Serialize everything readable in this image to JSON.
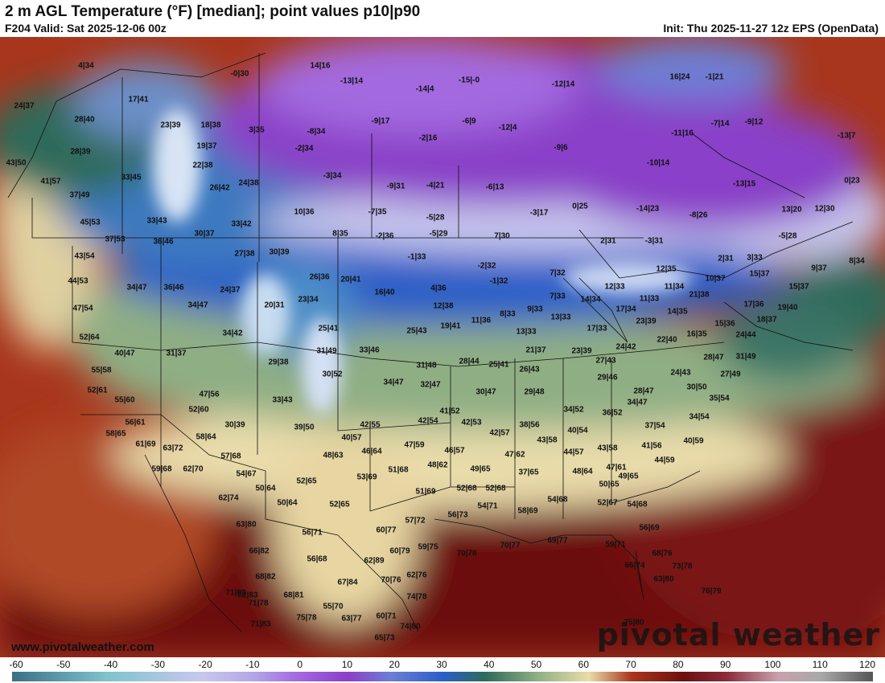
{
  "header": {
    "title": "2 m AGL Temperature (°F) [median]; point values p10|p90",
    "valid": "F204 Valid: Sat 2025-12-06 00z",
    "init": "Init: Thu 2025-11-27 12z EPS (OpenData)"
  },
  "footer": {
    "website": "www.pivotalweather.com",
    "brand": "pivotal weather"
  },
  "colorbar": {
    "ticks": [
      "-60",
      "-50",
      "-40",
      "-30",
      "-20",
      "-10",
      "0",
      "10",
      "20",
      "30",
      "40",
      "50",
      "60",
      "70",
      "80",
      "90",
      "100",
      "110",
      "120"
    ],
    "colors": {
      "m60": "#3a6f86",
      "m40": "#7fc3cc",
      "m20": "#c8c8ee",
      "m10": "#b3a6e6",
      "0": "#a36be0",
      "10": "#8a3fc8",
      "20": "#6d7fd4",
      "30": "#2a5ec7",
      "35": "#4f8fc8",
      "40": "#2f6a5a",
      "50": "#8fae84",
      "60": "#e9dcaa",
      "70": "#a8361c",
      "80": "#6c0f10",
      "90": "#8b2b3b",
      "100": "#c8a0ac",
      "110": "#a8a8a8",
      "120": "#555555"
    }
  },
  "points": [
    {
      "t": "4|34"
    },
    {
      "t": "-0|30"
    },
    {
      "t": "14|16"
    },
    {
      "t": "-13|14"
    },
    {
      "t": "-15|-0"
    },
    {
      "t": "-12|14"
    },
    {
      "t": "16|24"
    },
    {
      "t": "-1|21"
    },
    {
      "t": "24|37"
    },
    {
      "t": "17|41"
    },
    {
      "t": "-14|4"
    },
    {
      "t": "28|40"
    },
    {
      "t": "23|39"
    },
    {
      "t": "18|38"
    },
    {
      "t": "3|35"
    },
    {
      "t": "-8|34"
    },
    {
      "t": "-9|17"
    },
    {
      "t": "-6|9"
    },
    {
      "t": "-12|4"
    },
    {
      "t": "-11|16"
    },
    {
      "t": "-7|14"
    },
    {
      "t": "-9|12"
    },
    {
      "t": "-13|7"
    },
    {
      "t": "-2|16"
    },
    {
      "t": "28|39"
    },
    {
      "t": "19|37"
    },
    {
      "t": "-2|34"
    },
    {
      "t": "-9|6"
    },
    {
      "t": "43|50"
    },
    {
      "t": "22|38"
    },
    {
      "t": "-10|14"
    },
    {
      "t": "33|45"
    },
    {
      "t": "-3|34"
    },
    {
      "t": "41|57"
    },
    {
      "t": "26|42"
    },
    {
      "t": "24|38"
    },
    {
      "t": "-9|31"
    },
    {
      "t": "-4|21"
    },
    {
      "t": "-6|13"
    },
    {
      "t": "-13|15"
    },
    {
      "t": "0|23"
    },
    {
      "t": "37|49"
    },
    {
      "t": "0|25"
    },
    {
      "t": "-14|23"
    },
    {
      "t": "-8|26"
    },
    {
      "t": "13|20"
    },
    {
      "t": "12|30"
    },
    {
      "t": "10|36"
    },
    {
      "t": "-7|35"
    },
    {
      "t": "-3|17"
    },
    {
      "t": "-5|28"
    },
    {
      "t": "45|53"
    },
    {
      "t": "33|43"
    },
    {
      "t": "33|42"
    },
    {
      "t": "-5|29"
    },
    {
      "t": "-5|28"
    },
    {
      "t": "37|53"
    },
    {
      "t": "30|37"
    },
    {
      "t": "8|35"
    },
    {
      "t": "-2|36"
    },
    {
      "t": "7|30"
    },
    {
      "t": "2|31"
    },
    {
      "t": "-3|31"
    },
    {
      "t": "36|46"
    },
    {
      "t": "43|54"
    },
    {
      "t": "27|38"
    },
    {
      "t": "30|39"
    },
    {
      "t": "-1|33"
    },
    {
      "t": "2|31"
    },
    {
      "t": "3|33"
    },
    {
      "t": "9|37"
    },
    {
      "t": "-2|32"
    },
    {
      "t": "8|34"
    },
    {
      "t": "44|53"
    },
    {
      "t": "26|36"
    },
    {
      "t": "20|41"
    },
    {
      "t": "7|32"
    },
    {
      "t": "12|35"
    },
    {
      "t": "15|37"
    },
    {
      "t": "34|47"
    },
    {
      "t": "36|46"
    },
    {
      "t": "24|37"
    },
    {
      "t": "-1|32"
    },
    {
      "t": "10|37"
    },
    {
      "t": "15|37"
    },
    {
      "t": "4|36"
    },
    {
      "t": "12|33"
    },
    {
      "t": "11|34"
    },
    {
      "t": "16|40"
    },
    {
      "t": "20|31"
    },
    {
      "t": "23|34"
    },
    {
      "t": "7|33"
    },
    {
      "t": "14|34"
    },
    {
      "t": "11|33"
    },
    {
      "t": "21|38"
    },
    {
      "t": "47|54"
    },
    {
      "t": "34|47"
    },
    {
      "t": "12|38"
    },
    {
      "t": "17|36"
    },
    {
      "t": "19|40"
    },
    {
      "t": "9|33"
    },
    {
      "t": "17|34"
    },
    {
      "t": "8|33"
    },
    {
      "t": "14|35"
    },
    {
      "t": "11|36"
    },
    {
      "t": "13|33"
    },
    {
      "t": "23|39"
    },
    {
      "t": "18|37"
    },
    {
      "t": "19|41"
    },
    {
      "t": "17|33"
    },
    {
      "t": "25|41"
    },
    {
      "t": "15|36"
    },
    {
      "t": "52|64"
    },
    {
      "t": "34|42"
    },
    {
      "t": "25|43"
    },
    {
      "t": "13|33"
    },
    {
      "t": "16|35"
    },
    {
      "t": "22|40"
    },
    {
      "t": "24|44"
    },
    {
      "t": "40|47"
    },
    {
      "t": "31|37"
    },
    {
      "t": "31|49"
    },
    {
      "t": "33|46"
    },
    {
      "t": "21|37"
    },
    {
      "t": "23|39"
    },
    {
      "t": "24|42"
    },
    {
      "t": "28|47"
    },
    {
      "t": "31|49"
    },
    {
      "t": "29|38"
    },
    {
      "t": "31|48"
    },
    {
      "t": "28|44"
    },
    {
      "t": "25|41"
    },
    {
      "t": "27|43"
    },
    {
      "t": "55|58"
    },
    {
      "t": "30|52"
    },
    {
      "t": "26|43"
    },
    {
      "t": "29|46"
    },
    {
      "t": "24|43"
    },
    {
      "t": "27|49"
    },
    {
      "t": "34|47"
    },
    {
      "t": "32|47"
    },
    {
      "t": "30|47"
    },
    {
      "t": "52|61"
    },
    {
      "t": "28|47"
    },
    {
      "t": "30|50"
    },
    {
      "t": "47|56"
    },
    {
      "t": "29|48"
    },
    {
      "t": "55|60"
    },
    {
      "t": "33|43"
    },
    {
      "t": "35|54"
    },
    {
      "t": "34|47"
    },
    {
      "t": "34|52"
    },
    {
      "t": "41|52"
    },
    {
      "t": "52|60"
    },
    {
      "t": "36|52"
    },
    {
      "t": "34|54"
    },
    {
      "t": "56|61"
    },
    {
      "t": "30|39"
    },
    {
      "t": "42|54"
    },
    {
      "t": "42|53"
    },
    {
      "t": "42|55"
    },
    {
      "t": "38|56"
    },
    {
      "t": "37|54"
    },
    {
      "t": "39|50"
    },
    {
      "t": "58|65"
    },
    {
      "t": "58|64"
    },
    {
      "t": "42|57"
    },
    {
      "t": "40|54"
    },
    {
      "t": "40|59"
    },
    {
      "t": "40|57"
    },
    {
      "t": "43|58"
    },
    {
      "t": "61|69"
    },
    {
      "t": "41|56"
    },
    {
      "t": "47|59"
    },
    {
      "t": "46|57"
    },
    {
      "t": "63|72"
    },
    {
      "t": "46|64"
    },
    {
      "t": "44|57"
    },
    {
      "t": "43|58"
    },
    {
      "t": "48|63"
    },
    {
      "t": "47|62"
    },
    {
      "t": "57|68"
    },
    {
      "t": "44|59"
    },
    {
      "t": "51|68"
    },
    {
      "t": "59|68"
    },
    {
      "t": "62|70"
    },
    {
      "t": "48|62"
    },
    {
      "t": "49|65"
    },
    {
      "t": "47|61"
    },
    {
      "t": "48|64"
    },
    {
      "t": "37|65"
    },
    {
      "t": "54|67"
    },
    {
      "t": "53|69"
    },
    {
      "t": "49|65"
    },
    {
      "t": "52|65"
    },
    {
      "t": "50|64"
    },
    {
      "t": "50|65"
    },
    {
      "t": "51|69"
    },
    {
      "t": "52|68"
    },
    {
      "t": "52|68"
    },
    {
      "t": "62|74"
    },
    {
      "t": "50|64"
    },
    {
      "t": "52|65"
    },
    {
      "t": "54|68"
    },
    {
      "t": "52|67"
    },
    {
      "t": "54|68"
    },
    {
      "t": "54|71"
    },
    {
      "t": "58|69"
    },
    {
      "t": "56|73"
    },
    {
      "t": "57|72"
    },
    {
      "t": "63|80"
    },
    {
      "t": "56|69"
    },
    {
      "t": "56|71"
    },
    {
      "t": "60|77"
    },
    {
      "t": "69|77"
    },
    {
      "t": "70|77"
    },
    {
      "t": "59|75"
    },
    {
      "t": "59|71"
    },
    {
      "t": "66|82"
    },
    {
      "t": "60|79"
    },
    {
      "t": "70|78"
    },
    {
      "t": "56|68"
    },
    {
      "t": "62|89"
    },
    {
      "t": "68|76"
    },
    {
      "t": "66|74"
    },
    {
      "t": "73|78"
    },
    {
      "t": "68|82"
    },
    {
      "t": "62|83"
    },
    {
      "t": "62|76"
    },
    {
      "t": "70|76"
    },
    {
      "t": "67|84"
    },
    {
      "t": "63|80"
    },
    {
      "t": "71|89"
    },
    {
      "t": "68|81"
    },
    {
      "t": "74|78"
    },
    {
      "t": "71|78"
    },
    {
      "t": "55|70"
    },
    {
      "t": "76|79"
    },
    {
      "t": "60|71"
    },
    {
      "t": "71|83"
    },
    {
      "t": "75|78"
    },
    {
      "t": "63|77"
    },
    {
      "t": "74|80"
    },
    {
      "t": "75|80"
    },
    {
      "t": "65|73"
    }
  ]
}
